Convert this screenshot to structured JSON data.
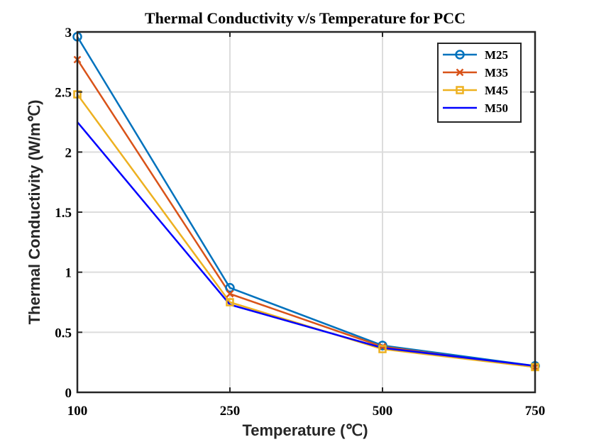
{
  "chart_data": {
    "type": "line",
    "title": "Thermal Conductivity v/s Temperature for PCC",
    "xlabel": "Temperature (℃)",
    "ylabel": "Thermal Conductivity (W/m℃)",
    "categories": [
      "100",
      "250",
      "500",
      "750"
    ],
    "ylim": [
      0,
      3
    ],
    "yticks": [
      "0",
      "0.5",
      "1",
      "1.5",
      "2",
      "2.5",
      "3"
    ],
    "grid": true,
    "legend_position": "top-right",
    "series": [
      {
        "name": "M25",
        "color": "#0072BD",
        "marker": "circle",
        "values": [
          2.96,
          0.87,
          0.39,
          0.22
        ]
      },
      {
        "name": "M35",
        "color": "#D95319",
        "marker": "x",
        "values": [
          2.77,
          0.82,
          0.38,
          0.21
        ]
      },
      {
        "name": "M45",
        "color": "#EDB120",
        "marker": "square",
        "values": [
          2.48,
          0.75,
          0.36,
          0.21
        ]
      },
      {
        "name": "M50",
        "color": "#0000FF",
        "marker": "none",
        "values": [
          2.25,
          0.73,
          0.37,
          0.22
        ]
      }
    ]
  }
}
